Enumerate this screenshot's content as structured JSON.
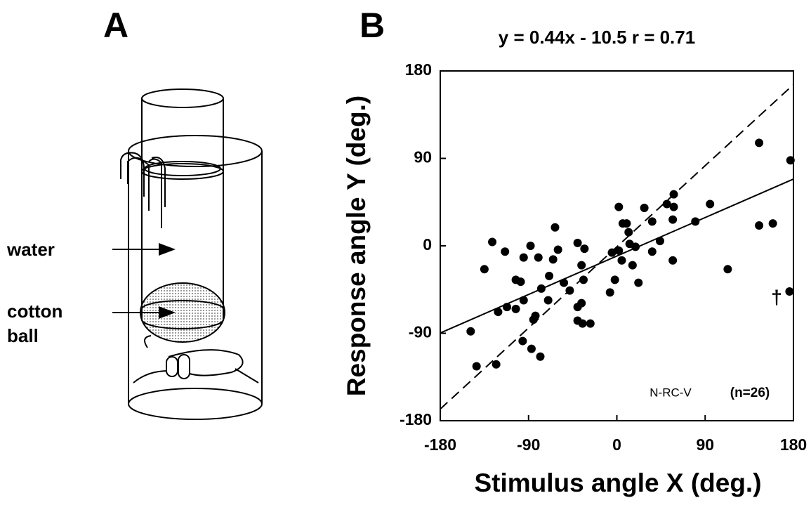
{
  "panel_a": {
    "label": "A",
    "water": "water",
    "cotton_ball": [
      "cotton",
      "ball"
    ]
  },
  "chart_data": {
    "type": "scatter",
    "panel_label": "B",
    "title": "y = 0.44x - 10.5   r = 0.71",
    "x_label": "Stimulus angle X (deg.)",
    "y_label": "Response angle Y (deg.)",
    "xlim": [
      -180,
      180
    ],
    "ylim": [
      -180,
      180
    ],
    "xticks": [
      -180,
      -90,
      0,
      90,
      180
    ],
    "yticks": [
      -180,
      -90,
      0,
      90,
      180
    ],
    "x": [
      -149,
      -143,
      -135,
      -127,
      -123,
      -121,
      -114,
      -112,
      -103,
      -103,
      -98,
      -95,
      -95,
      -96,
      -88,
      -87,
      -85,
      -83,
      -80,
      -78,
      -77,
      -69,
      -70,
      -65,
      -63,
      -60,
      -54,
      -48,
      -40,
      -40,
      -40,
      -36,
      -36,
      -35,
      -34,
      -33,
      -27,
      -7,
      -5,
      -2,
      2,
      2,
      5,
      6,
      10,
      12,
      13,
      16,
      19,
      22,
      28,
      36,
      36,
      44,
      51,
      57,
      57,
      58,
      58,
      80,
      95,
      113,
      145,
      145,
      159,
      176,
      177
    ],
    "values": [
      -88,
      -124,
      -24,
      4,
      -122,
      -68,
      -6,
      -63,
      -65,
      -35,
      -37,
      -56,
      -12,
      -98,
      0,
      -106,
      -76,
      -72,
      -12,
      -114,
      -44,
      -31,
      -56,
      -14,
      19,
      -4,
      -38,
      -46,
      3,
      -63,
      -77,
      -59,
      -20,
      -80,
      -35,
      -3,
      -80,
      -48,
      -7,
      -35,
      -5,
      40,
      -15,
      23,
      23,
      14,
      2,
      -20,
      -1,
      -38,
      39,
      25,
      -6,
      5,
      43,
      27,
      -15,
      40,
      53,
      25,
      43,
      -24,
      106,
      21,
      23,
      -47,
      88
    ],
    "fit_line": {
      "x": [
        -180,
        180
      ],
      "y": [
        -89.7,
        68.7
      ]
    },
    "dashed_line": {
      "x": [
        -180,
        180
      ],
      "y": [
        -168,
        166
      ]
    },
    "annotations": [
      "N-RC-V",
      "(n=26)",
      "†"
    ]
  }
}
